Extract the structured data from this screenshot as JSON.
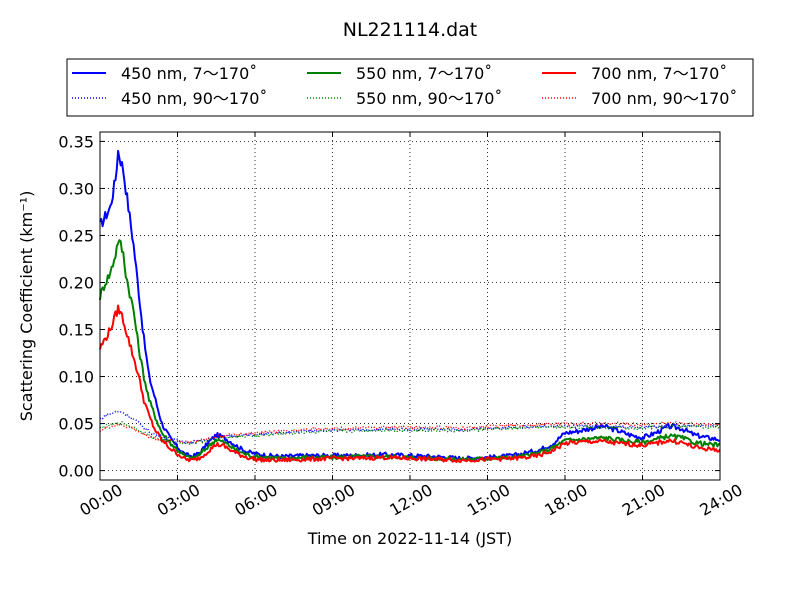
{
  "chart_data": {
    "type": "line",
    "title": "NL221114.dat",
    "xlabel": "Time on 2022-11-14 (JST)",
    "ylabel": "Scattering Coefficient (km⁻¹)",
    "xlim": [
      0,
      24
    ],
    "ylim": [
      -0.01,
      0.36
    ],
    "grid": true,
    "grid_style": "dotted",
    "legend_position": "top (outside plot), 3 columns",
    "x_tick_labels": [
      "00:00",
      "03:00",
      "06:00",
      "09:00",
      "12:00",
      "15:00",
      "18:00",
      "21:00",
      "24:00"
    ],
    "x_ticks": [
      0,
      3,
      6,
      9,
      12,
      15,
      18,
      21,
      24
    ],
    "y_tick_labels": [
      "0.00",
      "0.05",
      "0.10",
      "0.15",
      "0.20",
      "0.25",
      "0.30",
      "0.35"
    ],
    "y_ticks": [
      0,
      0.05,
      0.1,
      0.15,
      0.2,
      0.25,
      0.3,
      0.35
    ],
    "series": [
      {
        "name": "450 nm, 7～170˚",
        "color": "#0000ff",
        "style": "solid",
        "x": [
          0,
          0.2,
          0.4,
          0.6,
          0.7,
          0.8,
          0.9,
          1.0,
          1.1,
          1.3,
          1.5,
          1.7,
          1.9,
          2.1,
          2.4,
          2.7,
          3.0,
          3.3,
          3.6,
          3.9,
          4.2,
          4.5,
          4.8,
          5.1,
          5.4,
          5.7,
          6.0,
          6.5,
          7,
          8,
          9,
          10,
          11,
          12,
          13,
          14,
          15,
          16,
          16.5,
          17,
          17.5,
          18,
          18.5,
          19,
          19.5,
          20,
          20.5,
          21,
          21.5,
          22,
          22.5,
          23,
          23.5,
          24
        ],
        "y": [
          0.26,
          0.27,
          0.28,
          0.31,
          0.34,
          0.33,
          0.32,
          0.3,
          0.28,
          0.24,
          0.19,
          0.14,
          0.1,
          0.08,
          0.05,
          0.035,
          0.025,
          0.017,
          0.015,
          0.02,
          0.03,
          0.038,
          0.035,
          0.03,
          0.024,
          0.02,
          0.018,
          0.016,
          0.015,
          0.016,
          0.016,
          0.016,
          0.017,
          0.016,
          0.015,
          0.013,
          0.014,
          0.016,
          0.019,
          0.022,
          0.028,
          0.04,
          0.042,
          0.045,
          0.047,
          0.043,
          0.038,
          0.035,
          0.04,
          0.047,
          0.045,
          0.038,
          0.035,
          0.033
        ]
      },
      {
        "name": "550 nm, 7～170˚",
        "color": "#008000",
        "style": "solid",
        "x": [
          0,
          0.2,
          0.4,
          0.6,
          0.7,
          0.8,
          0.9,
          1.0,
          1.1,
          1.3,
          1.5,
          1.7,
          1.9,
          2.1,
          2.4,
          2.7,
          3.0,
          3.3,
          3.6,
          3.9,
          4.2,
          4.5,
          4.8,
          5.1,
          5.4,
          5.7,
          6.0,
          6.5,
          7,
          8,
          9,
          10,
          11,
          12,
          13,
          14,
          15,
          16,
          16.5,
          17,
          17.5,
          18,
          18.5,
          19,
          19.5,
          20,
          20.5,
          21,
          21.5,
          22,
          22.5,
          23,
          23.5,
          24
        ],
        "y": [
          0.185,
          0.2,
          0.21,
          0.23,
          0.245,
          0.24,
          0.23,
          0.21,
          0.195,
          0.17,
          0.13,
          0.1,
          0.075,
          0.06,
          0.04,
          0.03,
          0.022,
          0.015,
          0.013,
          0.018,
          0.026,
          0.033,
          0.03,
          0.025,
          0.02,
          0.017,
          0.015,
          0.014,
          0.013,
          0.014,
          0.014,
          0.015,
          0.015,
          0.014,
          0.013,
          0.012,
          0.013,
          0.014,
          0.016,
          0.019,
          0.024,
          0.032,
          0.033,
          0.034,
          0.035,
          0.033,
          0.031,
          0.03,
          0.033,
          0.037,
          0.035,
          0.03,
          0.028,
          0.027
        ]
      },
      {
        "name": "700 nm, 7～170˚",
        "color": "#ff0000",
        "style": "solid",
        "x": [
          0,
          0.2,
          0.4,
          0.6,
          0.7,
          0.8,
          0.9,
          1.0,
          1.1,
          1.3,
          1.5,
          1.7,
          1.9,
          2.1,
          2.4,
          2.7,
          3.0,
          3.3,
          3.6,
          3.9,
          4.2,
          4.5,
          4.8,
          5.1,
          5.4,
          5.7,
          6.0,
          6.5,
          7,
          8,
          9,
          10,
          11,
          12,
          13,
          14,
          15,
          16,
          16.5,
          17,
          17.5,
          18,
          18.5,
          19,
          19.5,
          20,
          20.5,
          21,
          21.5,
          22,
          22.5,
          23,
          23.5,
          24
        ],
        "y": [
          0.13,
          0.14,
          0.15,
          0.165,
          0.172,
          0.168,
          0.16,
          0.15,
          0.14,
          0.12,
          0.1,
          0.075,
          0.058,
          0.045,
          0.032,
          0.024,
          0.018,
          0.012,
          0.011,
          0.014,
          0.021,
          0.028,
          0.026,
          0.021,
          0.017,
          0.014,
          0.012,
          0.011,
          0.011,
          0.012,
          0.013,
          0.013,
          0.014,
          0.013,
          0.012,
          0.011,
          0.012,
          0.013,
          0.014,
          0.016,
          0.021,
          0.029,
          0.03,
          0.031,
          0.031,
          0.029,
          0.028,
          0.027,
          0.029,
          0.032,
          0.03,
          0.025,
          0.023,
          0.022
        ]
      },
      {
        "name": "450 nm, 90～170˚",
        "color": "#0000ff",
        "style": "dotted",
        "x": [
          0,
          0.3,
          0.6,
          0.8,
          1.0,
          1.3,
          1.6,
          2.0,
          2.5,
          3.0,
          3.5,
          4.0,
          4.5,
          5.0,
          6,
          7,
          8,
          9,
          10,
          11,
          12,
          13,
          14,
          15,
          16,
          17,
          18,
          19,
          20,
          21,
          22,
          23,
          24
        ],
        "y": [
          0.055,
          0.06,
          0.062,
          0.063,
          0.06,
          0.055,
          0.048,
          0.04,
          0.035,
          0.032,
          0.03,
          0.032,
          0.035,
          0.037,
          0.038,
          0.04,
          0.042,
          0.043,
          0.043,
          0.044,
          0.044,
          0.044,
          0.043,
          0.045,
          0.046,
          0.047,
          0.047,
          0.047,
          0.047,
          0.046,
          0.048,
          0.048,
          0.047
        ]
      },
      {
        "name": "550 nm, 90～170˚",
        "color": "#008000",
        "style": "dotted",
        "x": [
          0,
          0.3,
          0.6,
          0.8,
          1.0,
          1.3,
          1.6,
          2.0,
          2.5,
          3.0,
          3.5,
          4.0,
          4.5,
          5.0,
          6,
          7,
          8,
          9,
          10,
          11,
          12,
          13,
          14,
          15,
          16,
          17,
          18,
          19,
          20,
          21,
          22,
          23,
          24
        ],
        "y": [
          0.045,
          0.048,
          0.05,
          0.051,
          0.049,
          0.046,
          0.042,
          0.036,
          0.032,
          0.03,
          0.029,
          0.031,
          0.034,
          0.036,
          0.037,
          0.039,
          0.041,
          0.042,
          0.042,
          0.043,
          0.043,
          0.043,
          0.042,
          0.044,
          0.045,
          0.046,
          0.046,
          0.046,
          0.046,
          0.045,
          0.047,
          0.047,
          0.046
        ]
      },
      {
        "name": "700 nm, 90～170˚",
        "color": "#ff0000",
        "style": "dotted",
        "x": [
          0,
          0.3,
          0.6,
          0.8,
          1.0,
          1.3,
          1.6,
          2.0,
          2.5,
          3.0,
          3.5,
          4.0,
          4.5,
          5.0,
          6,
          7,
          8,
          9,
          10,
          11,
          12,
          13,
          14,
          15,
          16,
          17,
          18,
          19,
          20,
          21,
          22,
          23,
          24
        ],
        "y": [
          0.043,
          0.046,
          0.048,
          0.049,
          0.047,
          0.044,
          0.04,
          0.035,
          0.032,
          0.031,
          0.031,
          0.033,
          0.036,
          0.038,
          0.04,
          0.042,
          0.044,
          0.045,
          0.045,
          0.046,
          0.046,
          0.046,
          0.045,
          0.047,
          0.048,
          0.049,
          0.05,
          0.05,
          0.05,
          0.049,
          0.051,
          0.05,
          0.049
        ]
      }
    ]
  }
}
